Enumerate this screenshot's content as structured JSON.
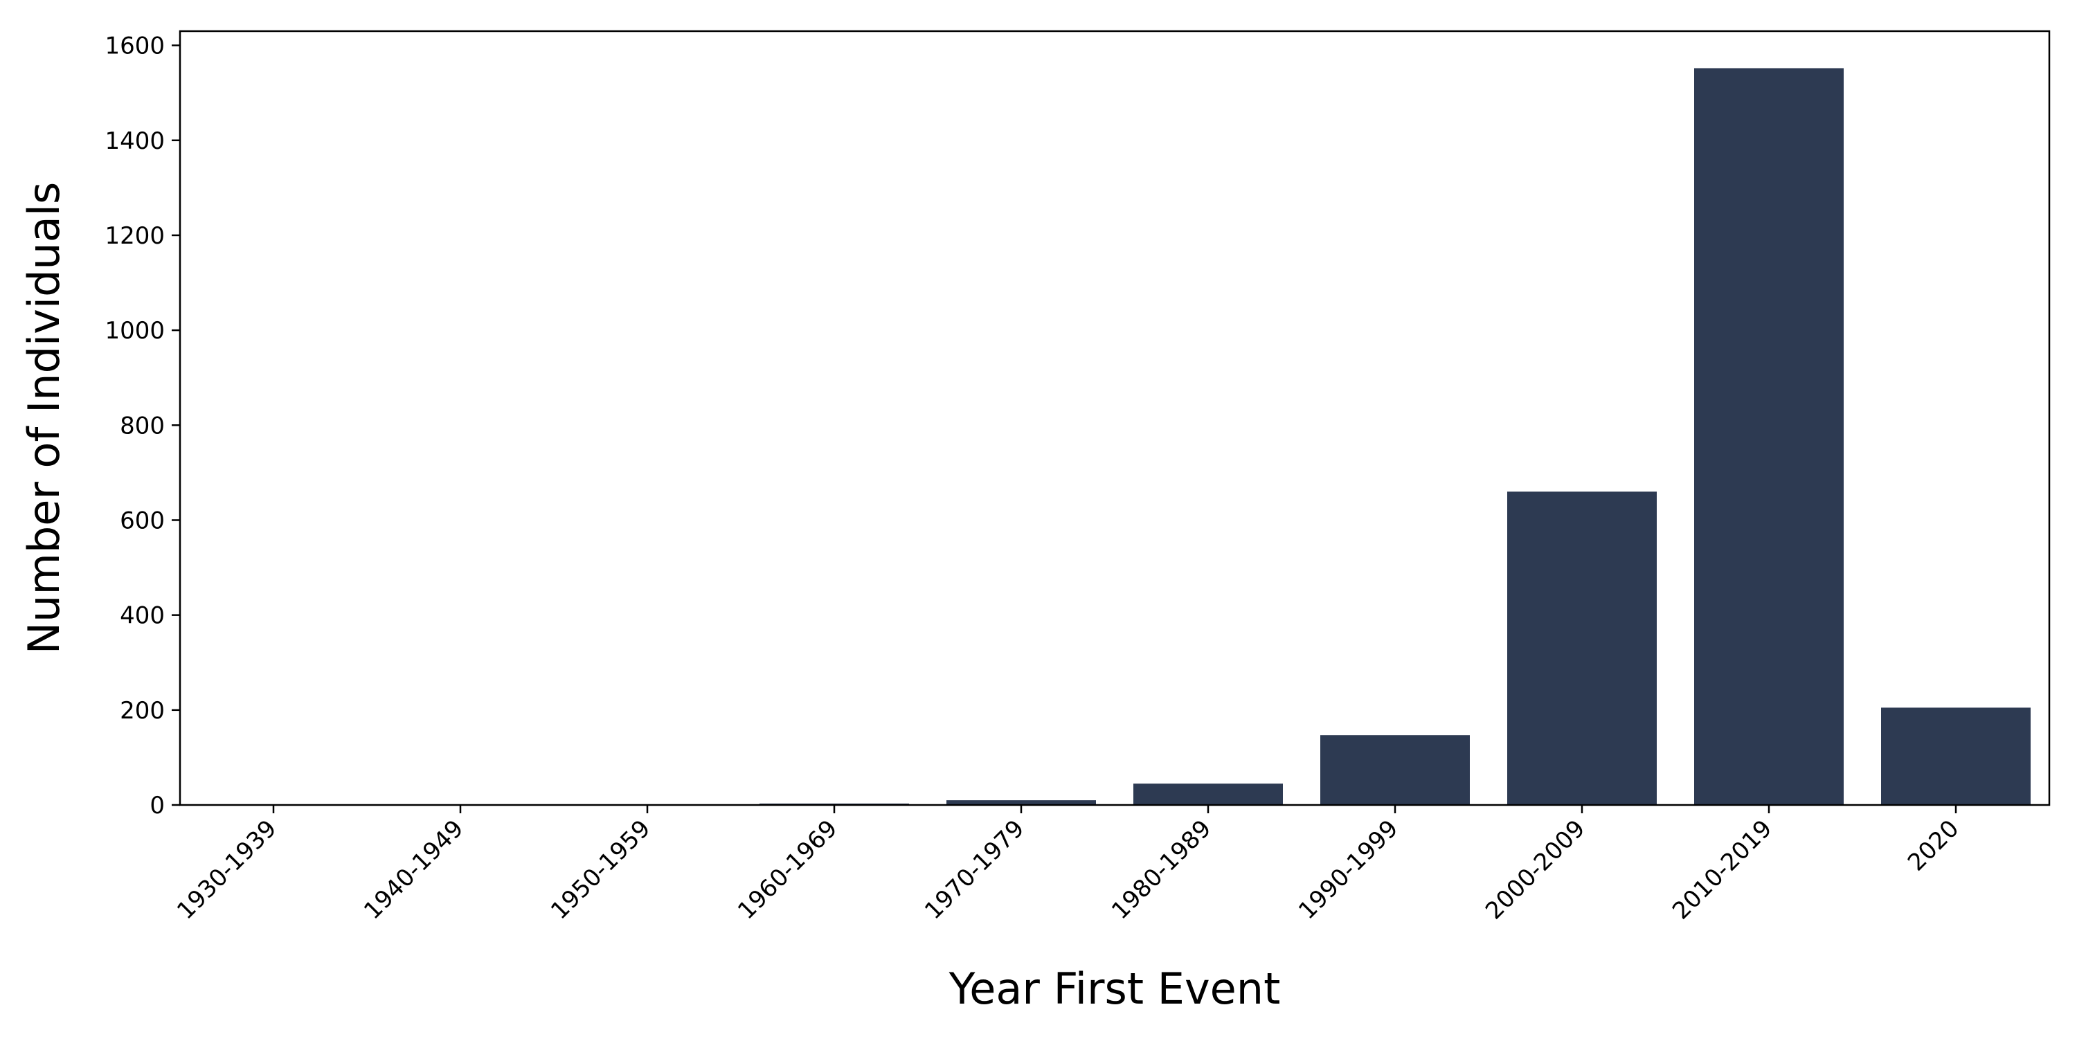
{
  "chart_data": {
    "type": "bar",
    "title": "",
    "xlabel": "Year First Event",
    "ylabel": "Number of Individuals",
    "categories": [
      "1930-1939",
      "1940-1949",
      "1950-1959",
      "1960-1969",
      "1970-1979",
      "1980-1989",
      "1990-1999",
      "2000-2009",
      "2010-2019",
      "2020"
    ],
    "values": [
      1,
      1,
      1,
      3,
      10,
      45,
      147,
      660,
      1552,
      205
    ],
    "ylim": [
      0,
      1630
    ],
    "yticks": [
      0,
      200,
      400,
      600,
      800,
      1000,
      1200,
      1400,
      1600
    ],
    "grid": false,
    "legend": "none",
    "bar_color": "#2d3a52",
    "x_tick_rotation": 45
  }
}
